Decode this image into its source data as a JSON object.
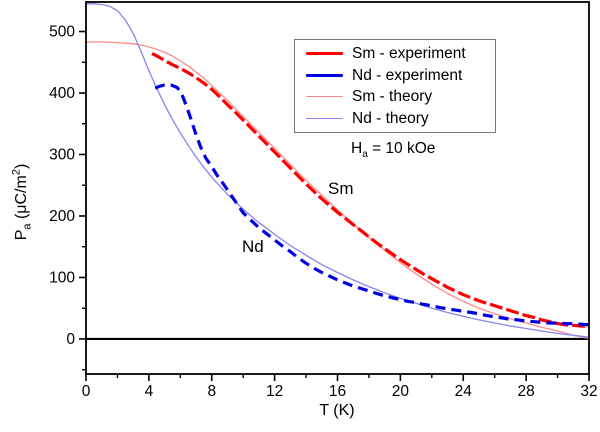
{
  "axes": {
    "x_title": "T (K)",
    "y_title": {
      "main": "P",
      "sub": "a",
      "rest": " (μC/m",
      "sup": "2",
      "close": ")"
    }
  },
  "annotations": {
    "field": {
      "h": "H",
      "sub": "a",
      "rest": " = 10 kOe"
    },
    "sm": "Sm",
    "nd": "Nd"
  },
  "legend": {
    "items": [
      {
        "label": "Sm - experiment",
        "color": "#fe0000",
        "thickness": 3
      },
      {
        "label": "Nd - experiment",
        "color": "#0000e6",
        "thickness": 3
      },
      {
        "label": "Sm - theory",
        "color": "#ff8a8a",
        "thickness": 1.3
      },
      {
        "label": "Nd - theory",
        "color": "#8585ee",
        "thickness": 1.3
      }
    ]
  },
  "chart_data": {
    "type": "line",
    "title": "",
    "xlabel": "T (K)",
    "ylabel": "Pa (uC/m2)",
    "xlim": [
      0,
      32
    ],
    "ylim": [
      -57,
      548
    ],
    "x_major_ticks": [
      0,
      4,
      8,
      12,
      16,
      20,
      24,
      28,
      32
    ],
    "x_minor_ticks": [
      2,
      6,
      10,
      14,
      18,
      22,
      26,
      30
    ],
    "y_major_ticks": [
      0,
      100,
      200,
      300,
      400,
      500
    ],
    "y_minor_ticks": [
      -50,
      50,
      150,
      250,
      350,
      450
    ],
    "zero_line": 0,
    "grid": false,
    "legend_position": "upper-right-inside",
    "annotation_field": "Ha = 10 kOe",
    "series": [
      {
        "name": "Sm - theory",
        "color": "#ff8a8a",
        "width": 1.3,
        "dash": "",
        "points": [
          [
            0,
            483
          ],
          [
            1,
            483
          ],
          [
            2,
            482
          ],
          [
            2.5,
            481
          ],
          [
            3,
            480
          ],
          [
            3.5,
            478
          ],
          [
            4,
            475
          ],
          [
            4.5,
            471
          ],
          [
            5,
            466
          ],
          [
            5.5,
            460
          ],
          [
            6,
            452
          ],
          [
            6.5,
            444
          ],
          [
            7,
            434
          ],
          [
            7.5,
            424
          ],
          [
            8,
            412
          ],
          [
            8.5,
            400
          ],
          [
            9,
            388
          ],
          [
            9.5,
            375
          ],
          [
            10,
            362
          ],
          [
            10.5,
            349
          ],
          [
            11,
            336
          ],
          [
            11.5,
            323
          ],
          [
            12,
            310
          ],
          [
            12.5,
            297
          ],
          [
            13,
            284
          ],
          [
            13.5,
            271
          ],
          [
            14,
            258
          ],
          [
            14.5,
            246
          ],
          [
            15,
            234
          ],
          [
            15.5,
            222
          ],
          [
            16,
            210
          ],
          [
            17,
            187
          ],
          [
            18,
            165
          ],
          [
            19,
            144
          ],
          [
            20,
            124
          ],
          [
            21,
            106
          ],
          [
            22,
            89
          ],
          [
            23,
            74
          ],
          [
            24,
            61
          ],
          [
            25,
            50
          ],
          [
            26,
            41
          ],
          [
            27,
            33
          ],
          [
            28,
            26
          ],
          [
            29,
            19
          ],
          [
            30,
            13
          ],
          [
            31,
            6
          ],
          [
            32,
            1
          ]
        ]
      },
      {
        "name": "Nd - theory",
        "color": "#8585ee",
        "width": 1.3,
        "dash": "",
        "points": [
          [
            0,
            545
          ],
          [
            0.5,
            545
          ],
          [
            1,
            544
          ],
          [
            1.5,
            541
          ],
          [
            2,
            534
          ],
          [
            2.5,
            519
          ],
          [
            3,
            497
          ],
          [
            3.5,
            468
          ],
          [
            4,
            436
          ],
          [
            4.5,
            408
          ],
          [
            5,
            381
          ],
          [
            5.5,
            357
          ],
          [
            6,
            335
          ],
          [
            6.5,
            315
          ],
          [
            7,
            296
          ],
          [
            7.5,
            279
          ],
          [
            8,
            263
          ],
          [
            8.5,
            249
          ],
          [
            9,
            235
          ],
          [
            9.5,
            223
          ],
          [
            10,
            211
          ],
          [
            10.5,
            200
          ],
          [
            11,
            189
          ],
          [
            11.5,
            180
          ],
          [
            12,
            170
          ],
          [
            13,
            152
          ],
          [
            14,
            136
          ],
          [
            15,
            121
          ],
          [
            16,
            108
          ],
          [
            17,
            96
          ],
          [
            18,
            85
          ],
          [
            19,
            75
          ],
          [
            20,
            66
          ],
          [
            21,
            58
          ],
          [
            22,
            50
          ],
          [
            23,
            43
          ],
          [
            24,
            37
          ],
          [
            25,
            31
          ],
          [
            26,
            26
          ],
          [
            27,
            21
          ],
          [
            28,
            17
          ],
          [
            29,
            13
          ],
          [
            30,
            9
          ],
          [
            31,
            6
          ],
          [
            32,
            3
          ]
        ]
      },
      {
        "name": "Sm - experiment",
        "color": "#fe0000",
        "width": 3.2,
        "dash": "13 4",
        "points": [
          [
            4.2,
            464
          ],
          [
            4.6,
            459
          ],
          [
            5,
            453
          ],
          [
            5.5,
            446
          ],
          [
            6,
            440
          ],
          [
            6.5,
            433
          ],
          [
            7,
            425
          ],
          [
            7.5,
            416
          ],
          [
            8,
            406
          ],
          [
            8.5,
            394
          ],
          [
            9,
            381
          ],
          [
            9.5,
            369
          ],
          [
            10,
            356
          ],
          [
            10.5,
            343
          ],
          [
            11,
            330
          ],
          [
            11.5,
            317
          ],
          [
            12,
            304
          ],
          [
            12.5,
            291
          ],
          [
            13,
            278
          ],
          [
            13.5,
            265
          ],
          [
            14,
            252
          ],
          [
            14.5,
            240
          ],
          [
            15,
            228
          ],
          [
            15.5,
            217
          ],
          [
            16,
            206
          ],
          [
            16.5,
            196
          ],
          [
            17,
            186
          ],
          [
            17.5,
            176
          ],
          [
            18,
            166
          ],
          [
            18.5,
            156
          ],
          [
            19,
            147
          ],
          [
            19.5,
            138
          ],
          [
            20,
            129
          ],
          [
            20.5,
            121
          ],
          [
            21,
            113
          ],
          [
            21.5,
            105
          ],
          [
            22,
            98
          ],
          [
            22.5,
            91
          ],
          [
            23,
            84
          ],
          [
            23.5,
            78
          ],
          [
            24,
            72
          ],
          [
            24.5,
            67
          ],
          [
            25,
            62
          ],
          [
            25.5,
            58
          ],
          [
            26,
            54
          ],
          [
            26.5,
            50
          ],
          [
            27,
            46
          ],
          [
            27.5,
            42
          ],
          [
            28,
            38
          ],
          [
            28.5,
            35
          ],
          [
            29,
            31
          ],
          [
            29.5,
            28
          ],
          [
            30,
            25
          ],
          [
            30.5,
            23
          ],
          [
            31,
            22
          ],
          [
            31.5,
            21
          ],
          [
            32,
            21
          ]
        ]
      },
      {
        "name": "Nd - experiment",
        "color": "#0000e6",
        "width": 3.2,
        "dash": "10 6",
        "points": [
          [
            4.4,
            408
          ],
          [
            4.7,
            411
          ],
          [
            5,
            413
          ],
          [
            5.4,
            413
          ],
          [
            5.8,
            409
          ],
          [
            6.1,
            398
          ],
          [
            6.4,
            378
          ],
          [
            6.7,
            356
          ],
          [
            7,
            332
          ],
          [
            7.3,
            312
          ],
          [
            7.6,
            295
          ],
          [
            8,
            280
          ],
          [
            8.4,
            264
          ],
          [
            8.8,
            250
          ],
          [
            9.2,
            235
          ],
          [
            9.6,
            220
          ],
          [
            10,
            205
          ],
          [
            10.5,
            193
          ],
          [
            11,
            181
          ],
          [
            11.5,
            171
          ],
          [
            12,
            161
          ],
          [
            12.5,
            151
          ],
          [
            13,
            142
          ],
          [
            13.5,
            132
          ],
          [
            14,
            123
          ],
          [
            14.5,
            115
          ],
          [
            15,
            108
          ],
          [
            15.5,
            102
          ],
          [
            16,
            96
          ],
          [
            16.5,
            91
          ],
          [
            17,
            86
          ],
          [
            17.5,
            82
          ],
          [
            18,
            78
          ],
          [
            18.5,
            74
          ],
          [
            19,
            70
          ],
          [
            19.5,
            67
          ],
          [
            20,
            64
          ],
          [
            20.5,
            61
          ],
          [
            21,
            59
          ],
          [
            21.5,
            56
          ],
          [
            22,
            54
          ],
          [
            22.5,
            51
          ],
          [
            23,
            49
          ],
          [
            23.5,
            47
          ],
          [
            24,
            45
          ],
          [
            24.5,
            43
          ],
          [
            25,
            41
          ],
          [
            25.5,
            38
          ],
          [
            26,
            36
          ],
          [
            26.5,
            34
          ],
          [
            27,
            32
          ],
          [
            27.5,
            31
          ],
          [
            28,
            29
          ],
          [
            28.5,
            28
          ],
          [
            29,
            27
          ],
          [
            29.5,
            26
          ],
          [
            30,
            26
          ],
          [
            30.5,
            25
          ],
          [
            31,
            25
          ],
          [
            31.5,
            24
          ],
          [
            32,
            23
          ]
        ]
      }
    ]
  }
}
